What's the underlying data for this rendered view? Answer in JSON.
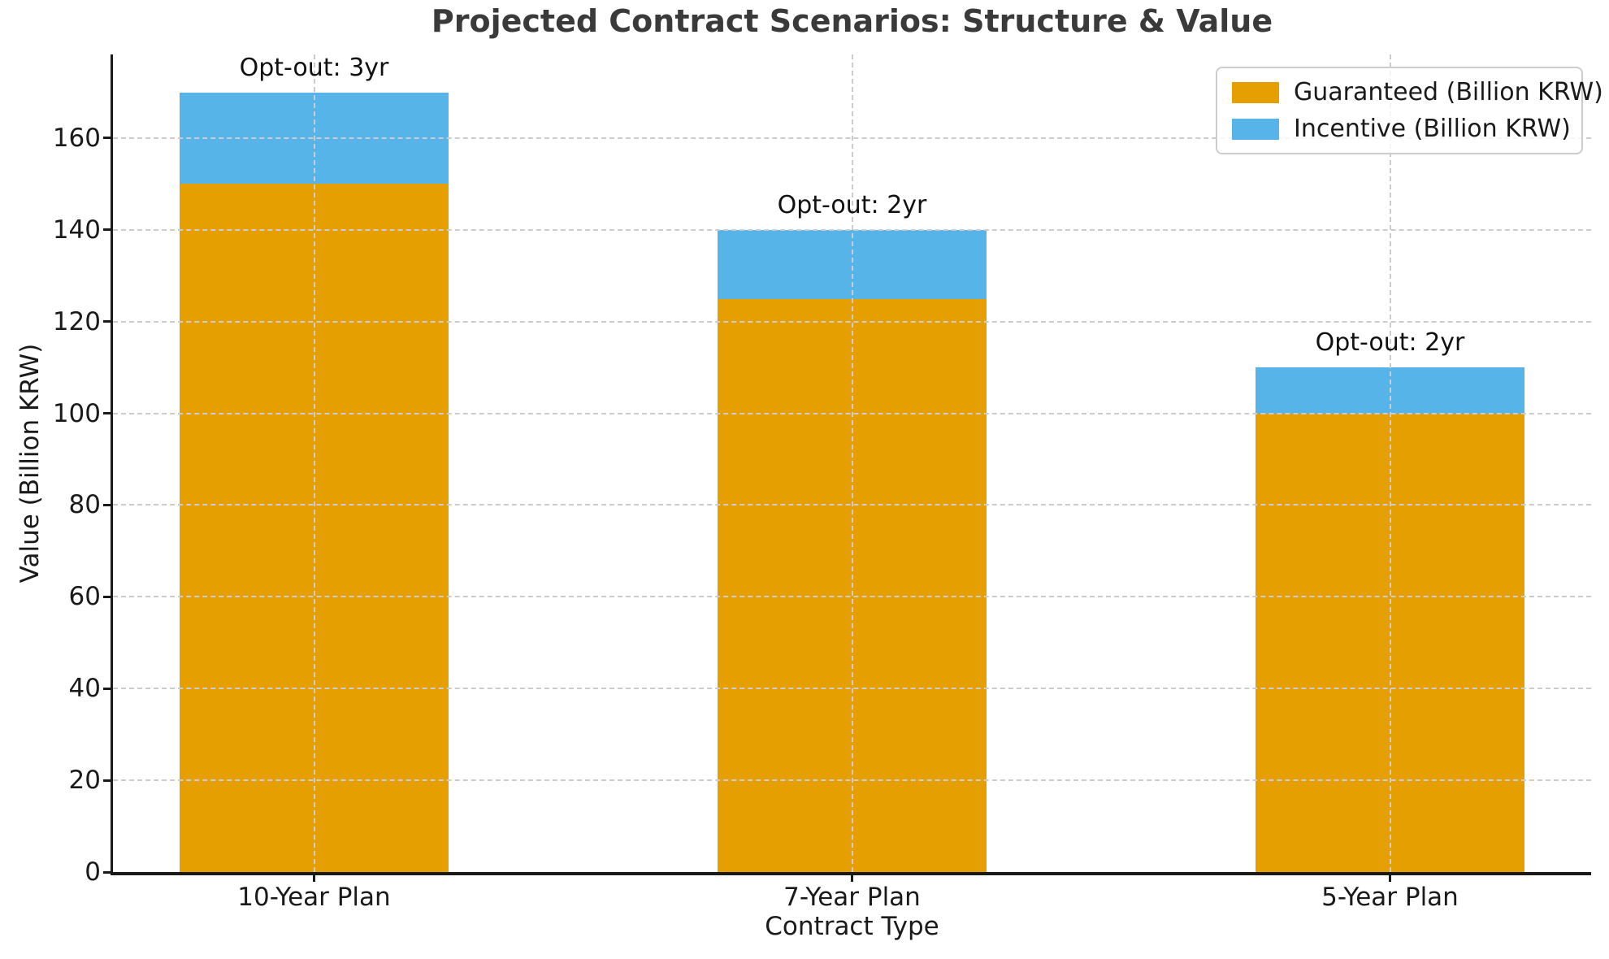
{
  "chart_data": {
    "type": "bar",
    "stacked": true,
    "title": "Projected Contract Scenarios: Structure & Value",
    "xlabel": "Contract Type",
    "ylabel": "Value (Billion KRW)",
    "categories": [
      "10-Year Plan",
      "7-Year Plan",
      "5-Year Plan"
    ],
    "series": [
      {
        "name": "Guaranteed (Billion KRW)",
        "color": "#E69F00",
        "values": [
          150,
          125,
          100
        ]
      },
      {
        "name": "Incentive (Billion KRW)",
        "color": "#56B4E9",
        "values": [
          20,
          15,
          10
        ]
      }
    ],
    "annotations": [
      "Opt-out: 3yr",
      "Opt-out: 2yr",
      "Opt-out: 2yr"
    ],
    "yticks": [
      0,
      20,
      40,
      60,
      80,
      100,
      120,
      140,
      160
    ],
    "ylim": [
      0,
      178.25
    ],
    "grid": {
      "style": "dashed",
      "color": "#cccccc",
      "axes": "both",
      "above_bars": true
    },
    "legend": {
      "position": "upper-right"
    },
    "colors": {
      "axis": "#1a1a1a",
      "title": "#3a3a3a",
      "background": "#ffffff"
    }
  }
}
